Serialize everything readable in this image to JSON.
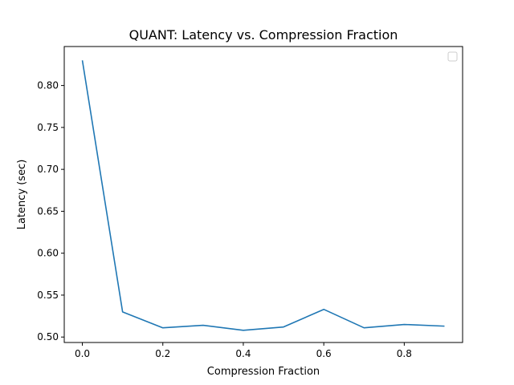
{
  "chart_data": {
    "type": "line",
    "title": "QUANT: Latency vs. Compression Fraction",
    "xlabel": "Compression Fraction",
    "ylabel": "Latency (sec)",
    "xlim": [
      -0.045,
      0.945
    ],
    "ylim": [
      0.4935,
      0.8465
    ],
    "xticks": [
      0.0,
      0.2,
      0.4,
      0.6,
      0.8
    ],
    "xtick_labels": [
      "0.0",
      "0.2",
      "0.4",
      "0.6",
      "0.8"
    ],
    "yticks": [
      0.5,
      0.55,
      0.6,
      0.65,
      0.7,
      0.75,
      0.8
    ],
    "ytick_labels": [
      "0.50",
      "0.55",
      "0.60",
      "0.65",
      "0.70",
      "0.75",
      "0.80"
    ],
    "grid": false,
    "legend": {
      "placement": "top-right",
      "entries": []
    },
    "series": [
      {
        "color": "#1f77b4",
        "x": [
          0.0,
          0.1,
          0.2,
          0.3,
          0.4,
          0.5,
          0.6,
          0.7,
          0.8,
          0.9
        ],
        "y": [
          0.83,
          0.53,
          0.511,
          0.514,
          0.508,
          0.512,
          0.533,
          0.511,
          0.515,
          0.513
        ]
      }
    ]
  }
}
